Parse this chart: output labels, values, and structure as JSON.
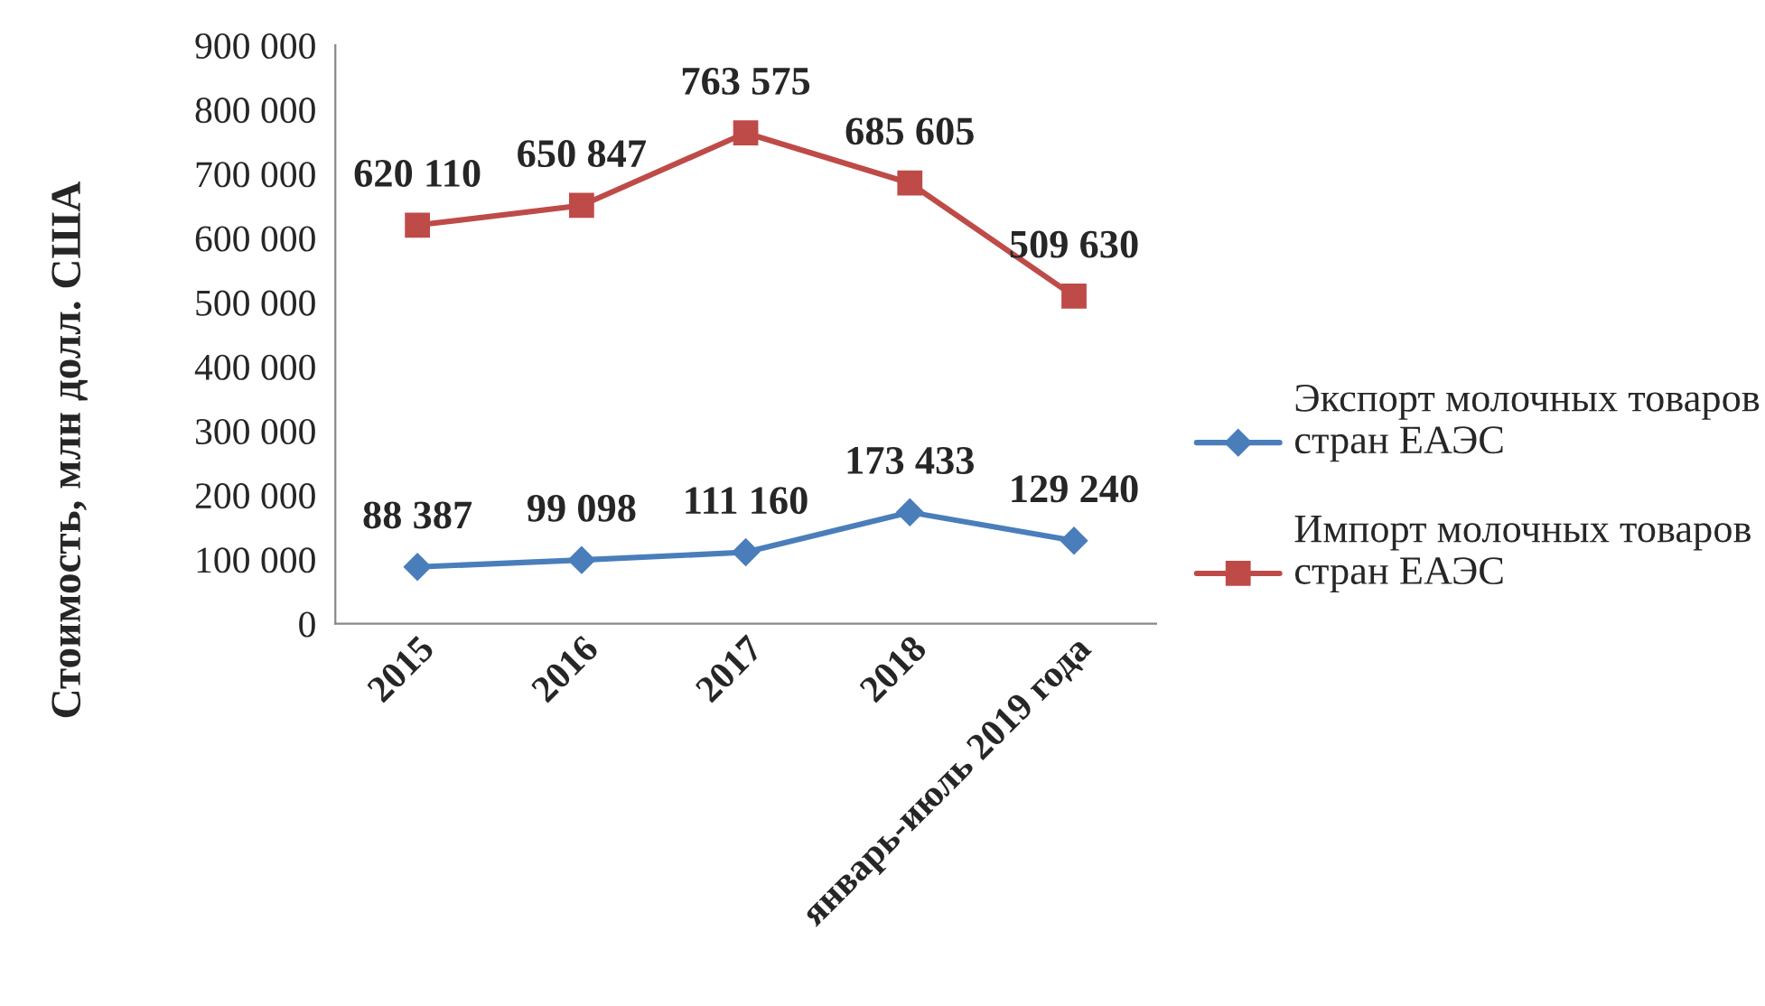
{
  "chart_data": {
    "type": "line",
    "ylabel": "Стоимость, млн долл. США",
    "categories": [
      "2015",
      "2016",
      "2017",
      "2018",
      "январь-июль 2019 года"
    ],
    "series": [
      {
        "name": "Экспорт молочных товаров стран ЕАЭС",
        "color": "#4a7ebb",
        "marker": "diamond",
        "values": [
          88387,
          99098,
          111160,
          173433,
          129240
        ],
        "value_labels": [
          "88 387",
          "99 098",
          "111 160",
          "173 433",
          "129 240"
        ]
      },
      {
        "name": "Импорт молочных товаров стран ЕАЭС",
        "color": "#be4b48",
        "marker": "square",
        "values": [
          620110,
          650847,
          763575,
          685605,
          509630
        ],
        "value_labels": [
          "620 110",
          "650 847",
          "763 575",
          "685 605",
          "509 630"
        ]
      }
    ],
    "ylim": [
      0,
      900000
    ],
    "yticks": [
      {
        "value": 0,
        "label": "0"
      },
      {
        "value": 100000,
        "label": "100 000"
      },
      {
        "value": 200000,
        "label": "200 000"
      },
      {
        "value": 300000,
        "label": "300 000"
      },
      {
        "value": 400000,
        "label": "400 000"
      },
      {
        "value": 500000,
        "label": "500 000"
      },
      {
        "value": 600000,
        "label": "600 000"
      },
      {
        "value": 700000,
        "label": "700 000"
      },
      {
        "value": 800000,
        "label": "800 000"
      },
      {
        "value": 900000,
        "label": "900 000"
      }
    ],
    "grid": false,
    "legend": "right",
    "line_style": "solid"
  }
}
